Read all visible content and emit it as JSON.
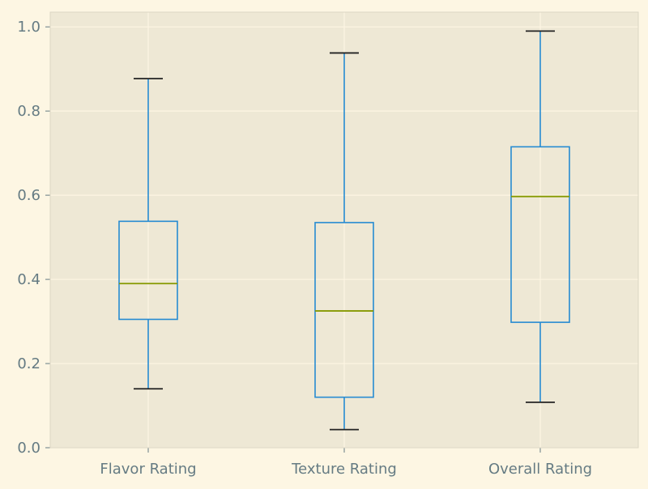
{
  "chart_data": {
    "type": "box",
    "title": "",
    "xlabel": "",
    "ylabel": "",
    "categories": [
      "Flavor Rating",
      "Texture Rating",
      "Overall Rating"
    ],
    "series": [
      {
        "boxes": [
          {
            "whisker_low": 0.14,
            "q1": 0.305,
            "median": 0.39,
            "q3": 0.538,
            "whisker_high": 0.877
          },
          {
            "whisker_low": 0.043,
            "q1": 0.12,
            "median": 0.325,
            "q3": 0.535,
            "whisker_high": 0.938
          },
          {
            "whisker_low": 0.108,
            "q1": 0.298,
            "median": 0.597,
            "q3": 0.715,
            "whisker_high": 0.99
          }
        ]
      }
    ],
    "y_ticks": [
      "0.0",
      "0.2",
      "0.4",
      "0.6",
      "0.8",
      "1.0"
    ],
    "ylim": [
      0.0,
      1.035
    ],
    "grid": true,
    "legend": "none",
    "colors": {
      "page_background": "#fdf6e3",
      "plot_background": "#eee8d5",
      "grid": "#fdf6e3",
      "box": "#268bd2",
      "median": "#859900",
      "cap": "#222222",
      "tick_text": "#657b83",
      "axis_spine": "#dcd6c4"
    }
  }
}
